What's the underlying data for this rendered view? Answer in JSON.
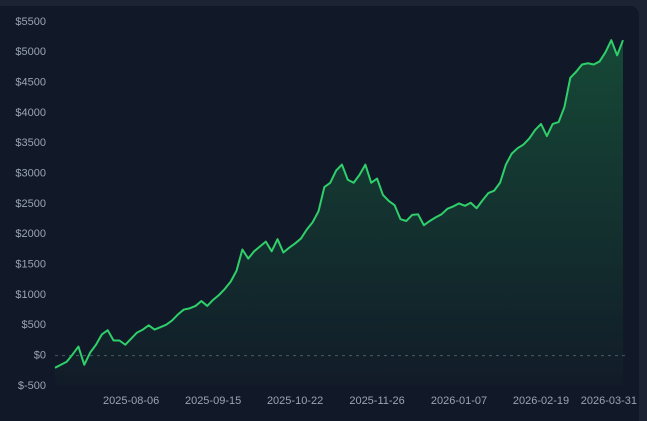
{
  "chart_data": {
    "type": "area",
    "color": "#2fcf6a",
    "zero_line": true,
    "grid": false,
    "categories": [
      null,
      null,
      null,
      null,
      null,
      null,
      null,
      null,
      null,
      null,
      null,
      null,
      null,
      "2025-08-06",
      null,
      null,
      null,
      null,
      null,
      null,
      null,
      null,
      null,
      null,
      null,
      null,
      null,
      "2025-09-15",
      null,
      null,
      null,
      null,
      null,
      null,
      null,
      null,
      null,
      null,
      null,
      null,
      null,
      "2025-10-22",
      null,
      null,
      null,
      null,
      null,
      null,
      null,
      null,
      null,
      null,
      null,
      null,
      null,
      "2025-11-26",
      null,
      null,
      null,
      null,
      null,
      null,
      null,
      null,
      null,
      null,
      null,
      null,
      null,
      "2026-01-07",
      null,
      null,
      null,
      null,
      null,
      null,
      null,
      null,
      null,
      null,
      null,
      null,
      null,
      "2026-02-19",
      null,
      null,
      null,
      null,
      null,
      null,
      null,
      null,
      null,
      null,
      null,
      null,
      null,
      "2026-03-31"
    ],
    "values": [
      -200,
      -150,
      -100,
      20,
      150,
      -150,
      50,
      180,
      350,
      420,
      250,
      250,
      180,
      280,
      380,
      430,
      500,
      430,
      470,
      510,
      580,
      680,
      760,
      780,
      820,
      900,
      820,
      920,
      1000,
      1100,
      1220,
      1400,
      1750,
      1600,
      1720,
      1800,
      1880,
      1720,
      1920,
      1700,
      1780,
      1850,
      1930,
      2080,
      2200,
      2380,
      2780,
      2850,
      3050,
      3150,
      2900,
      2850,
      2980,
      3150,
      2850,
      2920,
      2650,
      2550,
      2480,
      2250,
      2220,
      2320,
      2330,
      2150,
      2220,
      2280,
      2330,
      2420,
      2460,
      2510,
      2470,
      2520,
      2430,
      2560,
      2680,
      2720,
      2850,
      3150,
      3330,
      3420,
      3480,
      3580,
      3720,
      3820,
      3620,
      3820,
      3850,
      4100,
      4580,
      4680,
      4800,
      4820,
      4800,
      4850,
      5000,
      5200,
      4950,
      5200
    ],
    "ylim": [
      -500,
      5500
    ],
    "yticks": [
      {
        "value": -500,
        "label": "$-500"
      },
      {
        "value": 0,
        "label": "$0"
      },
      {
        "value": 500,
        "label": "$500"
      },
      {
        "value": 1000,
        "label": "$1000"
      },
      {
        "value": 1500,
        "label": "$1500"
      },
      {
        "value": 2000,
        "label": "$2000"
      },
      {
        "value": 2500,
        "label": "$2500"
      },
      {
        "value": 3000,
        "label": "$3000"
      },
      {
        "value": 3500,
        "label": "$3500"
      },
      {
        "value": 4000,
        "label": "$4000"
      },
      {
        "value": 4500,
        "label": "$4500"
      },
      {
        "value": 5000,
        "label": "$5000"
      },
      {
        "value": 5500,
        "label": "$5500"
      }
    ]
  }
}
